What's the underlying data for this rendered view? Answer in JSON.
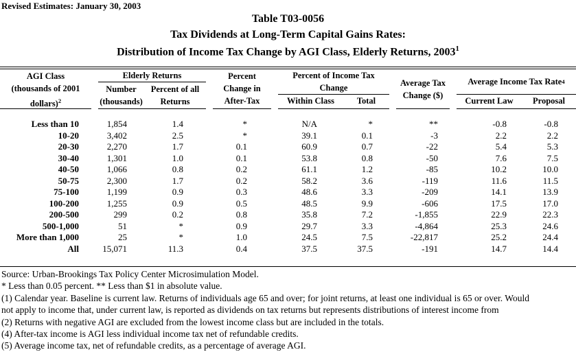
{
  "meta": {
    "revised": "Revised Estimates: January 30, 2003"
  },
  "colors": {
    "text": "#000000",
    "background": "#ffffff",
    "rules": "#000000"
  },
  "title": {
    "line1": "Table T03-0056",
    "line2": "Tax Dividends at Long-Term Capital Gains Rates:",
    "line3": "Distribution of Income Tax Change by AGI Class, Elderly Returns, 2003",
    "line3_sup": "1"
  },
  "table": {
    "header": {
      "agi": {
        "line1": "AGI Class",
        "line2": "(thousands of 2001",
        "line3": "dollars)",
        "line3_sup": "2"
      },
      "elderly": {
        "label": "Elderly Returns",
        "number_l1": "Number",
        "number_l2": "(thousands)",
        "pct_l1": "Percent of all",
        "pct_l2": "Returns"
      },
      "after_tax": {
        "line1": "Percent",
        "line2": "Change in",
        "line3": "After-Tax"
      },
      "pit": {
        "line1": "Percent of Income Tax",
        "line2": "Change",
        "sub1": "Within Class",
        "sub2": "Total"
      },
      "atc": {
        "line1": "Average Tax",
        "line2": "Change ($)"
      },
      "aitr": {
        "label": "Average Income Tax Rate",
        "sup": "4",
        "sub1": "Current Law",
        "sub2": "Proposal"
      }
    },
    "columns": [
      "AGI Class (thousands of 2001 dollars)",
      "Number (thousands)",
      "Percent of all Returns",
      "Percent Change in After-Tax",
      "Within Class",
      "Total",
      "Average Tax Change ($)",
      "Current Law",
      "Proposal"
    ],
    "rows": [
      [
        "Less than 10",
        "1,854",
        "1.4",
        "*",
        "N/A",
        "*",
        "**",
        "-0.8",
        "-0.8"
      ],
      [
        "10-20",
        "3,402",
        "2.5",
        "*",
        "39.1",
        "0.1",
        "-3",
        "2.2",
        "2.2"
      ],
      [
        "20-30",
        "2,270",
        "1.7",
        "0.1",
        "60.9",
        "0.7",
        "-22",
        "5.4",
        "5.3"
      ],
      [
        "30-40",
        "1,301",
        "1.0",
        "0.1",
        "53.8",
        "0.8",
        "-50",
        "7.6",
        "7.5"
      ],
      [
        "40-50",
        "1,066",
        "0.8",
        "0.2",
        "61.1",
        "1.2",
        "-85",
        "10.2",
        "10.0"
      ],
      [
        "50-75",
        "2,300",
        "1.7",
        "0.2",
        "58.2",
        "3.6",
        "-119",
        "11.6",
        "11.5"
      ],
      [
        "75-100",
        "1,199",
        "0.9",
        "0.3",
        "48.6",
        "3.3",
        "-209",
        "14.1",
        "13.9"
      ],
      [
        "100-200",
        "1,255",
        "0.9",
        "0.5",
        "48.5",
        "9.9",
        "-606",
        "17.5",
        "17.0"
      ],
      [
        "200-500",
        "299",
        "0.2",
        "0.8",
        "35.8",
        "7.2",
        "-1,855",
        "22.9",
        "22.3"
      ],
      [
        "500-1,000",
        "51",
        "*",
        "0.9",
        "29.7",
        "3.3",
        "-4,864",
        "25.3",
        "24.6"
      ],
      [
        "More than 1,000",
        "25",
        "*",
        "1.0",
        "24.5",
        "7.5",
        "-22,817",
        "25.2",
        "24.4"
      ],
      [
        "All",
        "15,071",
        "11.3",
        "0.4",
        "37.5",
        "37.5",
        "-191",
        "14.7",
        "14.4"
      ]
    ]
  },
  "footnotes": [
    "Source: Urban-Brookings Tax Policy Center Microsimulation Model.",
    "* Less than 0.05 percent. ** Less than $1 in absolute value.",
    "(1) Calendar year. Baseline is current law. Returns of individuals age 65 and over; for joint returns, at least one individual is 65 or over. Would",
    "not apply to income that, under current law, is reported as dividends on tax returns but represents distributions of interest income from",
    "(2) Returns with negative AGI are excluded from the lowest income class but are included in the totals.",
    "(4) After-tax income is AGI less individual income tax net of refundable credits.",
    "(5) Average income tax, net of refundable credits, as a percentage of average AGI."
  ]
}
